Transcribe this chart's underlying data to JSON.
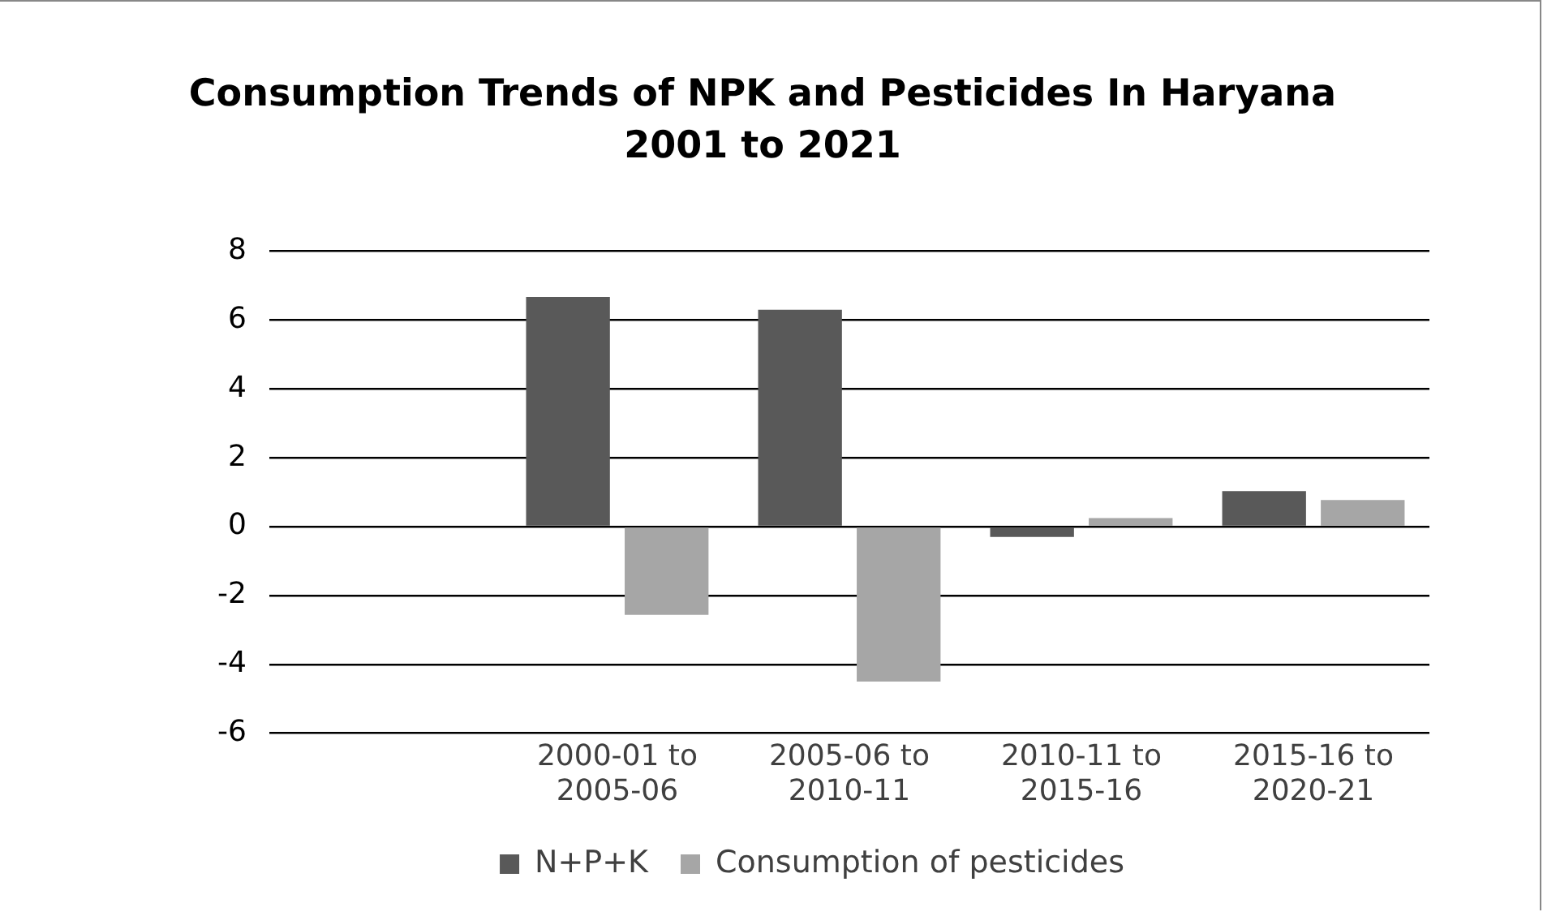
{
  "chart_data": {
    "type": "bar",
    "title": "Consumption Trends of NPK and Pesticides  In Haryana 2001 to 2021",
    "categories": [
      null,
      "2000-01 to 2005-06",
      "2005-06 to 2010-11",
      "2010-11 to 2015-16",
      "2015-16 to 2020-21"
    ],
    "series": [
      {
        "name": "N+P+K",
        "color": "#595959",
        "values": [
          null,
          6.67,
          6.3,
          -0.3,
          1.03
        ]
      },
      {
        "name": "Consumption of pesticides",
        "color": "#a6a6a6",
        "values": [
          null,
          -2.56,
          -4.5,
          0.25,
          0.77
        ]
      }
    ],
    "ylim": [
      -6,
      8
    ],
    "yticks": [
      -6,
      -4,
      -2,
      0,
      2,
      4,
      6,
      8
    ],
    "grid": "y",
    "legend": "bottom"
  }
}
